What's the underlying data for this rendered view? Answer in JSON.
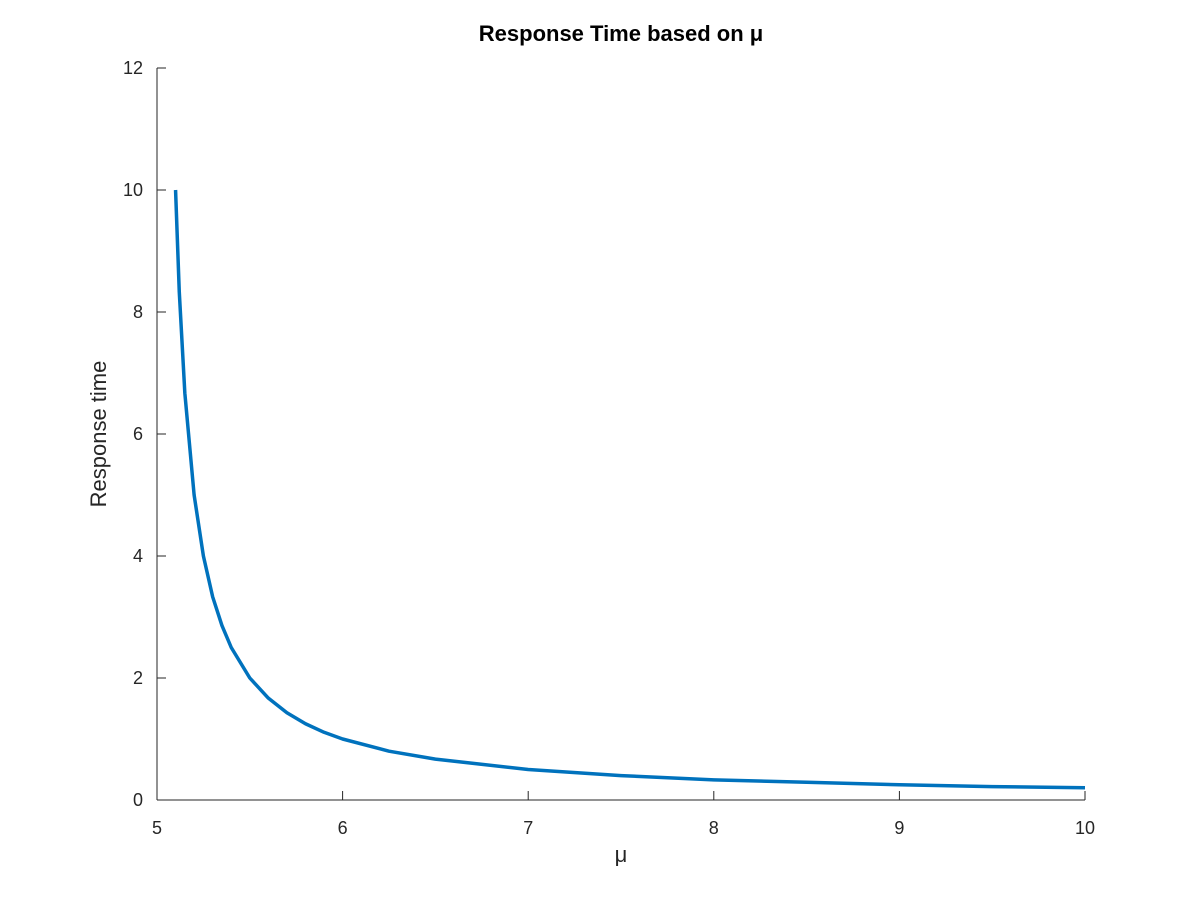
{
  "chart_data": {
    "type": "line",
    "title": "Response Time based on μ",
    "xlabel": "μ",
    "ylabel": "Response time",
    "xlim": [
      5,
      10
    ],
    "ylim": [
      0,
      12
    ],
    "xticks": [
      "5",
      "6",
      "7",
      "8",
      "9",
      "10"
    ],
    "yticks": [
      "0",
      "2",
      "4",
      "6",
      "8",
      "10",
      "12"
    ],
    "grid": false,
    "legend": "none",
    "series": [
      {
        "color": "#0072BD",
        "x": [
          5.1,
          5.12,
          5.15,
          5.2,
          5.25,
          5.3,
          5.35,
          5.4,
          5.5,
          5.6,
          5.7,
          5.8,
          5.9,
          6.0,
          6.25,
          6.5,
          7.0,
          7.5,
          8.0,
          8.5,
          9.0,
          9.5,
          10.0
        ],
        "y": [
          10.0,
          8.33,
          6.67,
          5.0,
          4.0,
          3.33,
          2.86,
          2.5,
          2.0,
          1.67,
          1.43,
          1.25,
          1.11,
          1.0,
          0.8,
          0.67,
          0.5,
          0.4,
          0.33,
          0.29,
          0.25,
          0.22,
          0.2
        ]
      }
    ]
  }
}
